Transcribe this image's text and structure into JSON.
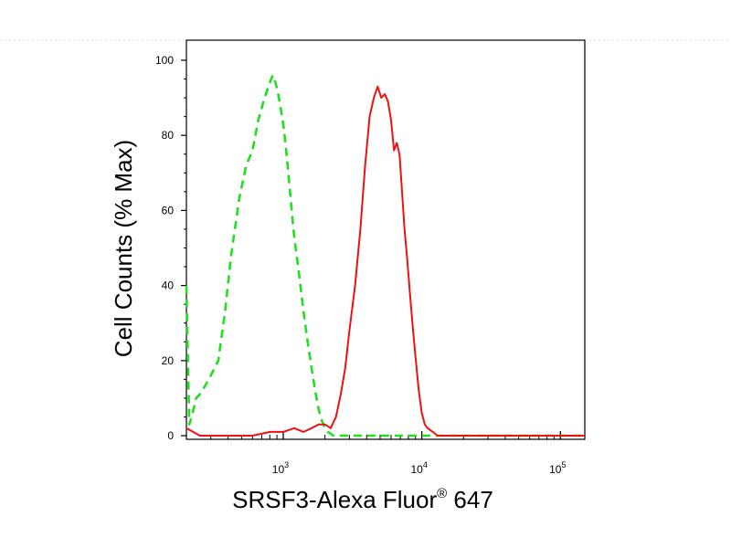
{
  "chart_data": {
    "type": "line",
    "title": "",
    "xlabel": "SRSF3-Alexa Fluor",
    "xlabel_superscript": "®",
    "xlabel_suffix": " 647",
    "ylabel": "Cell Counts (% Max)",
    "x_scale": "log",
    "xlim": [
      200,
      150000
    ],
    "ylim": [
      0,
      105
    ],
    "y_ticks": [
      0,
      20,
      40,
      60,
      80,
      100
    ],
    "y_tick_labels": [
      "0",
      "20",
      "40",
      "60",
      "80",
      "100"
    ],
    "x_major_ticks": [
      1000,
      10000,
      100000
    ],
    "x_tick_labels": [
      {
        "base": "10",
        "exp": "3"
      },
      {
        "base": "10",
        "exp": "4"
      },
      {
        "base": "10",
        "exp": "5"
      }
    ],
    "grid": false,
    "series": [
      {
        "style": "dashed",
        "color": "#22dd22",
        "x": [
          200,
          205,
          210,
          218,
          225,
          235,
          250,
          270,
          300,
          340,
          380,
          420,
          480,
          540,
          600,
          660,
          720,
          780,
          840,
          880,
          920,
          960,
          1000,
          1050,
          1100,
          1150,
          1200,
          1300,
          1400,
          1500,
          1600,
          1700,
          1800,
          1900,
          2000,
          2100,
          2300,
          2600,
          3000,
          5000,
          20000,
          150000
        ],
        "y": [
          40,
          20,
          3,
          5,
          7,
          10,
          11,
          13,
          16,
          20,
          33,
          48,
          63,
          72,
          76,
          84,
          89,
          93,
          96,
          94,
          91,
          87,
          83,
          76,
          68,
          60,
          53,
          43,
          33,
          25,
          18,
          12,
          7,
          4,
          2,
          1,
          0,
          0,
          0,
          0,
          0,
          0
        ]
      },
      {
        "style": "solid",
        "color": "#ee1111",
        "x": [
          200,
          250,
          300,
          400,
          600,
          800,
          1000,
          1200,
          1400,
          1600,
          1800,
          2000,
          2200,
          2400,
          2600,
          2800,
          3000,
          3300,
          3600,
          3900,
          4200,
          4500,
          4800,
          5100,
          5400,
          5700,
          6000,
          6300,
          6600,
          6900,
          7200,
          7500,
          7800,
          8200,
          8600,
          9000,
          9500,
          10000,
          10500,
          11000,
          12000,
          13000,
          15000,
          20000,
          40000,
          100000,
          150000
        ],
        "y": [
          2,
          0,
          0,
          0,
          0,
          1,
          1,
          2,
          1,
          2,
          3,
          3,
          2,
          5,
          11,
          18,
          28,
          40,
          55,
          72,
          85,
          90,
          93,
          90,
          91,
          89,
          84,
          76,
          78,
          75,
          65,
          55,
          48,
          38,
          29,
          21,
          12,
          6,
          3,
          2,
          1,
          0,
          0,
          0,
          0,
          0,
          0
        ]
      }
    ]
  }
}
